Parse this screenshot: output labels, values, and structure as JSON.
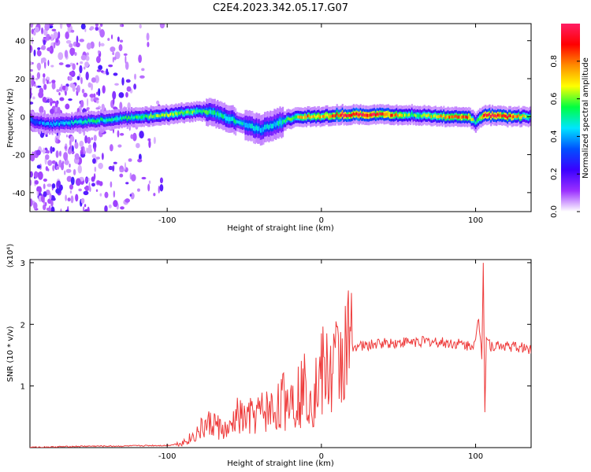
{
  "chart_data": [
    {
      "type": "heatmap",
      "title": "C2E4.2023.342.05.17.G07",
      "xlabel": "Height of straight line (km)",
      "ylabel": "Frequency (Hz)",
      "xlim": [
        -189,
        136
      ],
      "ylim": [
        -50,
        49
      ],
      "xticks": [
        -100,
        0,
        100
      ],
      "xtick_labels": [
        "-100",
        "0",
        "100"
      ],
      "yticks": [
        -40,
        -20,
        0,
        20,
        40
      ],
      "ytick_labels": [
        "-40",
        "-20",
        "0",
        "20",
        "40"
      ],
      "grid": false,
      "colorbar": {
        "label": "Normalized spectral amplitude",
        "range": [
          0,
          1
        ],
        "ticks": [
          0.0,
          0.2,
          0.4,
          0.6,
          0.8
        ],
        "tick_labels": [
          "0.0",
          "0.2",
          "0.4",
          "0.6",
          "0.8"
        ],
        "colors": [
          "#ffffff",
          "#9b30ff",
          "#3b00ff",
          "#0050ff",
          "#00e5ff",
          "#00ff40",
          "#ffff00",
          "#ff8c00",
          "#ff0000",
          "#ff1e64"
        ]
      },
      "ridge": {
        "x": [
          -189,
          -175,
          -160,
          -145,
          -130,
          -115,
          -100,
          -90,
          -80,
          -70,
          -60,
          -50,
          -40,
          -30,
          -20,
          -10,
          0,
          10,
          20,
          40,
          60,
          80,
          95,
          100,
          105,
          120,
          136
        ],
        "center_hz": [
          -2,
          -4,
          -3,
          -2,
          -1,
          0,
          1,
          2,
          3,
          2,
          -1,
          -4,
          -7,
          -4,
          -1,
          0,
          0,
          1,
          1,
          1,
          1,
          0,
          0,
          -3,
          1,
          0,
          0
        ],
        "amplitude": [
          0.35,
          0.4,
          0.45,
          0.5,
          0.5,
          0.55,
          0.6,
          0.6,
          0.55,
          0.5,
          0.5,
          0.45,
          0.45,
          0.45,
          0.55,
          0.8,
          0.7,
          0.9,
          0.95,
          0.9,
          0.55,
          0.75,
          0.85,
          0.5,
          0.9,
          0.9,
          0.55
        ]
      }
    },
    {
      "type": "line",
      "title": "",
      "xlabel": "Height of straight line (km)",
      "ylabel": "SNR (10 * v/v)",
      "y_multiplier": "(x10⁴)",
      "xlim": [
        -189,
        136
      ],
      "ylim": [
        0,
        3.05
      ],
      "xticks": [
        -100,
        0,
        100
      ],
      "xtick_labels": [
        "-100",
        "0",
        "100"
      ],
      "yticks": [
        1,
        2,
        3
      ],
      "ytick_labels": [
        "1",
        "2",
        "3"
      ],
      "grid": false,
      "series": [
        {
          "color": "#ee3b3b",
          "x": [
            -189,
            -170,
            -150,
            -130,
            -110,
            -100,
            -95,
            -90,
            -85,
            -80,
            -75,
            -70,
            -65,
            -60,
            -55,
            -50,
            -45,
            -40,
            -35,
            -30,
            -25,
            -20,
            -15,
            -10,
            -5,
            0,
            5,
            10,
            15,
            20,
            25,
            30,
            40,
            50,
            60,
            70,
            80,
            90,
            95,
            100,
            102,
            104,
            105,
            106,
            107,
            110,
            120,
            136
          ],
          "y": [
            0.0,
            0.01,
            0.02,
            0.02,
            0.03,
            0.03,
            0.05,
            0.08,
            0.15,
            0.25,
            0.35,
            0.4,
            0.3,
            0.25,
            0.5,
            0.45,
            0.5,
            0.55,
            0.6,
            0.6,
            0.75,
            0.85,
            0.85,
            1.0,
            0.85,
            1.2,
            1.2,
            1.35,
            1.55,
            1.65,
            1.65,
            1.65,
            1.7,
            1.7,
            1.72,
            1.72,
            1.7,
            1.68,
            1.65,
            1.7,
            2.1,
            1.5,
            3.05,
            0.6,
            1.8,
            1.65,
            1.65,
            1.6
          ]
        }
      ]
    }
  ]
}
